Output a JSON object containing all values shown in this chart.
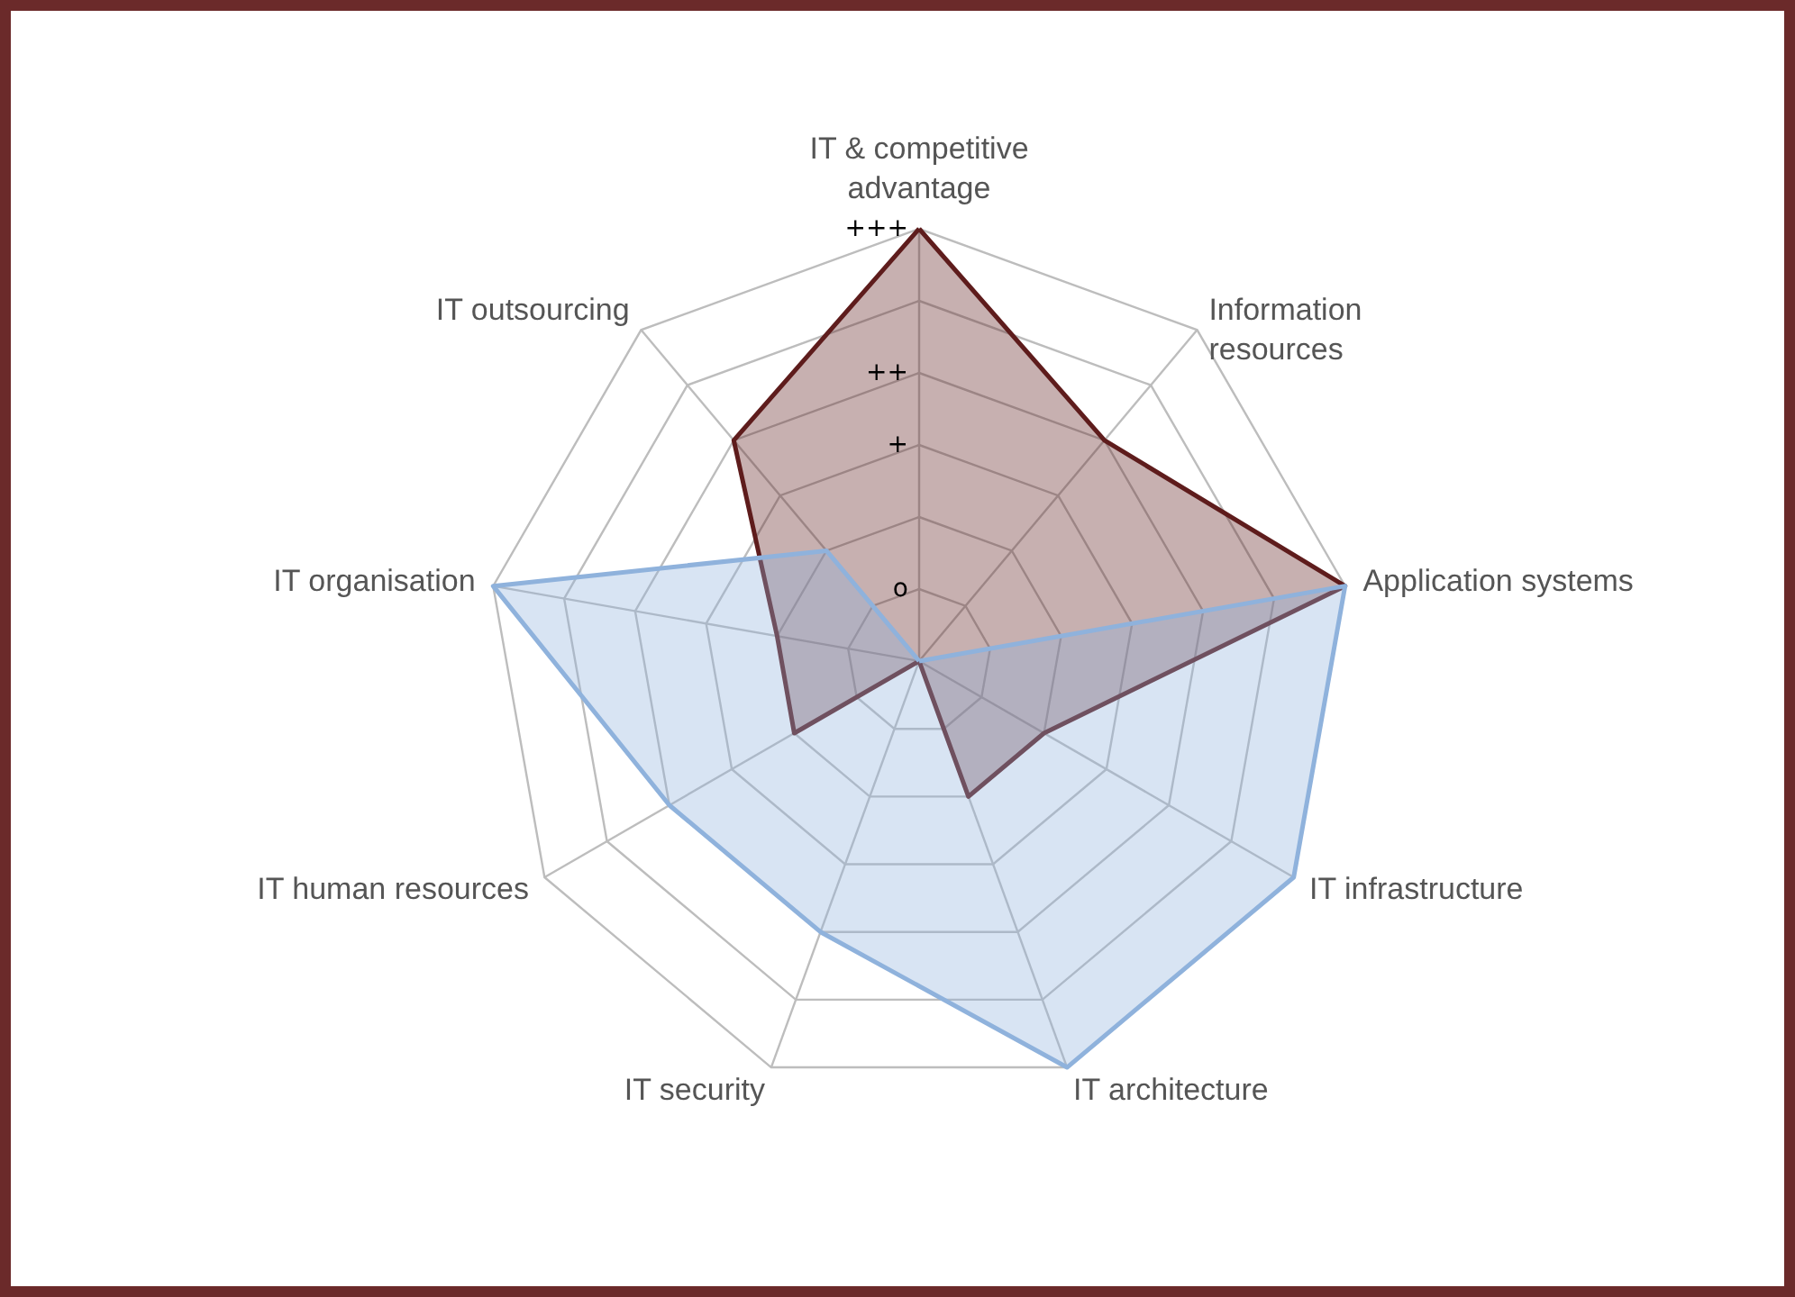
{
  "chart_data": {
    "type": "radar",
    "categories": [
      "IT & competitive\nadvantage",
      "Information\nresources",
      "Application systems",
      "IT infrastructure",
      "IT architecture",
      "IT security",
      "IT human resources",
      "IT organisation",
      "IT outsourcing"
    ],
    "series": [
      {
        "color": "#5e1c1c",
        "values": [
          6,
          4,
          6,
          2,
          2,
          0,
          2,
          2,
          4
        ]
      },
      {
        "color": "#8fb2dc",
        "values": [
          0,
          0,
          6,
          6,
          6,
          4,
          4,
          6,
          2
        ]
      }
    ],
    "ylim": [
      0,
      6
    ],
    "yticks": [
      {
        "value": 1,
        "label": "o"
      },
      {
        "value": 3,
        "label": "+"
      },
      {
        "value": 4,
        "label": "++"
      },
      {
        "value": 6,
        "label": "+++"
      }
    ],
    "grid": true
  }
}
